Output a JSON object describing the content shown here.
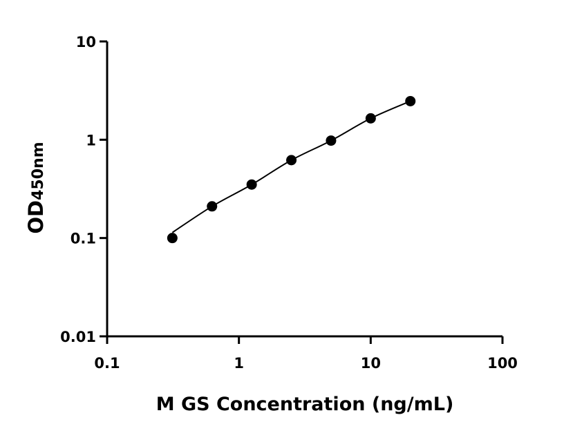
{
  "chart_data": {
    "type": "scatter",
    "xlabel": "M GS Concentration (ng/mL)",
    "ylabel_main": "OD",
    "ylabel_sub": "450nm",
    "x_scale": "log",
    "y_scale": "log",
    "xlim": [
      0.1,
      100
    ],
    "ylim": [
      0.01,
      10
    ],
    "x_ticks": [
      0.1,
      1,
      10,
      100
    ],
    "x_tick_labels": [
      "0.1",
      "1",
      "10",
      "100"
    ],
    "y_ticks": [
      0.01,
      0.1,
      1,
      10
    ],
    "y_tick_labels": [
      "0.01",
      "0.1",
      "1",
      "10"
    ],
    "grid": false,
    "fit_curve": true,
    "color": "#000000",
    "series": [
      {
        "x": [
          0.3125,
          0.625,
          1.25,
          2.5,
          5,
          10,
          20
        ],
        "y": [
          0.1,
          0.21,
          0.35,
          0.62,
          0.98,
          1.65,
          2.47
        ]
      }
    ]
  }
}
